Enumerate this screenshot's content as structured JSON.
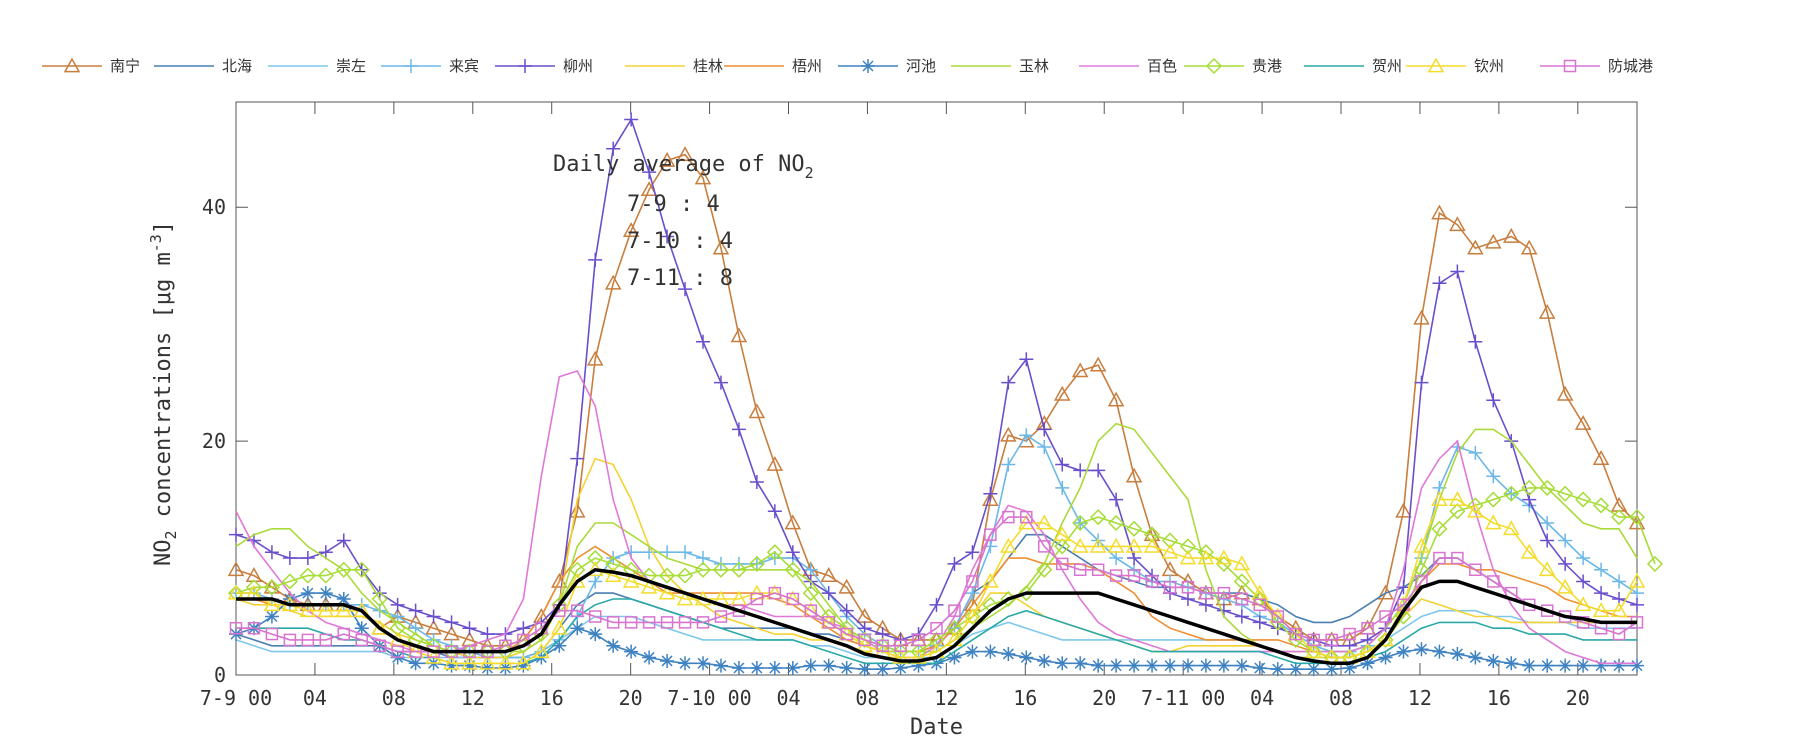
{
  "chart_data": {
    "type": "line",
    "xlabel": "Date",
    "ylabel_main": "NO",
    "ylabel_sub": "2",
    "ylabel_rest": " concentrations [",
    "ylabel_unit": "μg m",
    "ylabel_exp": "-3",
    "ylabel_end": "]",
    "ylim": [
      0,
      49
    ],
    "xlim": [
      0,
      71
    ],
    "yticks": [
      0,
      20,
      40
    ],
    "xticks": [
      {
        "x": 0,
        "label": "7-9 00"
      },
      {
        "x": 4,
        "label": "04"
      },
      {
        "x": 8,
        "label": "08"
      },
      {
        "x": 12,
        "label": "12"
      },
      {
        "x": 16,
        "label": "16"
      },
      {
        "x": 20,
        "label": "20"
      },
      {
        "x": 24,
        "label": "7-10 00"
      },
      {
        "x": 28,
        "label": "04"
      },
      {
        "x": 32,
        "label": "08"
      },
      {
        "x": 36,
        "label": "12"
      },
      {
        "x": 40,
        "label": "16"
      },
      {
        "x": 44,
        "label": "20"
      },
      {
        "x": 48,
        "label": "7-11 00"
      },
      {
        "x": 52,
        "label": "04"
      },
      {
        "x": 56,
        "label": "08"
      },
      {
        "x": 60,
        "label": "12"
      },
      {
        "x": 64,
        "label": "16"
      },
      {
        "x": 68,
        "label": "20"
      }
    ],
    "annotation": {
      "title_main": "Daily average of NO",
      "title_sub": "2",
      "lines": [
        "7-9 : 4",
        "7-10 : 4",
        "7-11 : 8"
      ]
    },
    "mean_color": "#000000",
    "series": [
      {
        "name": "南宁",
        "color": "#c87e3e",
        "marker": "triangle",
        "values": [
          9,
          8.5,
          7.5,
          6.5,
          6,
          6,
          6,
          5.5,
          4,
          5,
          4.5,
          4,
          3.5,
          3,
          2.5,
          2.5,
          3,
          5,
          8,
          14,
          27,
          33.5,
          38,
          41.5,
          44,
          44.5,
          42.5,
          36.5,
          29,
          22.5,
          18,
          13,
          9,
          8.5,
          7.5,
          5,
          4,
          3,
          3,
          3,
          4,
          6,
          15,
          20.5,
          20,
          21.5,
          24,
          26,
          26.5,
          23.5,
          17,
          12,
          9,
          8,
          7,
          6.5,
          7,
          6.5,
          5,
          4,
          3,
          3,
          3,
          4,
          7,
          14,
          30.5,
          39.5,
          38.5,
          36.5,
          37,
          37.5,
          36.5,
          31,
          24,
          21.5,
          18.5,
          14.5,
          13
        ]
      },
      {
        "name": "北海",
        "color": "#4a7fb0",
        "marker": "none",
        "values": [
          3.5,
          3,
          2.5,
          2.5,
          2.5,
          2.5,
          2.5,
          2.5,
          2.5,
          2,
          2,
          2,
          1.5,
          1.5,
          1.5,
          1.5,
          1.5,
          2,
          4,
          6,
          7,
          7,
          6.5,
          6,
          5.5,
          5,
          4.5,
          4,
          4,
          4,
          4,
          4,
          3.5,
          3.5,
          3,
          2.5,
          2,
          2,
          2,
          2.5,
          4,
          7,
          8,
          10,
          12,
          12,
          11,
          10,
          9,
          8.5,
          8,
          7.5,
          7.5,
          7.5,
          7,
          7,
          7,
          6.5,
          6,
          5,
          4.5,
          4.5,
          5,
          6,
          7,
          7.5,
          8.5,
          10,
          10,
          9,
          8,
          7,
          6,
          5.5,
          5,
          4.5,
          4.5,
          4.5,
          4.5
        ]
      },
      {
        "name": "崇左",
        "color": "#7fc8ea",
        "marker": "none",
        "values": [
          3,
          2.5,
          2,
          2,
          2,
          2,
          2,
          2,
          2,
          1.5,
          1.5,
          1.5,
          1.5,
          1.5,
          1.5,
          1.5,
          1.5,
          2,
          3,
          4,
          5,
          5,
          5,
          4.5,
          4,
          3.5,
          3,
          3,
          3,
          3,
          3,
          3,
          2.5,
          2.5,
          2,
          1.5,
          1.5,
          1.5,
          1.5,
          1.5,
          2.5,
          3.5,
          4,
          4.5,
          4,
          3.5,
          3,
          3,
          3,
          3,
          3,
          3,
          3,
          3,
          3,
          3,
          3,
          2.5,
          2,
          1.5,
          1.5,
          1.5,
          1.5,
          2,
          3,
          4,
          5,
          5.5,
          5.5,
          5.5,
          5,
          5,
          4.5,
          4.5,
          4.5,
          4,
          4,
          4,
          4
        ]
      },
      {
        "name": "来宾",
        "color": "#6cb8e8",
        "marker": "plus",
        "values": [
          7,
          7,
          6.5,
          6,
          6,
          6,
          6,
          6,
          5.5,
          5,
          4,
          3,
          2.5,
          2,
          1.5,
          1.5,
          1.5,
          2,
          3,
          5,
          8,
          10,
          10.5,
          10.5,
          10.5,
          10.5,
          10,
          9.5,
          9.5,
          9.5,
          10,
          10,
          9,
          7,
          5,
          3.5,
          2.5,
          2,
          2,
          2.5,
          4,
          7,
          11,
          18,
          20.5,
          19.5,
          16,
          13,
          11.5,
          10,
          9,
          8,
          8,
          7.5,
          7,
          6.5,
          6,
          5,
          4.5,
          3.5,
          2.5,
          2,
          2,
          2.5,
          4,
          6,
          10,
          16,
          19.5,
          19,
          17,
          15.5,
          14.5,
          13,
          11.5,
          10,
          9,
          8,
          7
        ]
      },
      {
        "name": "柳州",
        "color": "#6a4fcc",
        "marker": "plus",
        "values": [
          12,
          11.5,
          10.5,
          10,
          10,
          10.5,
          11.5,
          9,
          7,
          6,
          5.5,
          5,
          4.5,
          4,
          3.5,
          3.5,
          4,
          4.5,
          6,
          18.5,
          35.5,
          45,
          47.5,
          43,
          37.5,
          33,
          28.5,
          25,
          21,
          16.5,
          14,
          10.5,
          8,
          7,
          5.5,
          4,
          3.5,
          3,
          3.5,
          6,
          9.5,
          10.5,
          15.5,
          25,
          27,
          21,
          18,
          17.5,
          17.5,
          15,
          10,
          8.5,
          7,
          6.5,
          6,
          5.5,
          5,
          4.5,
          4,
          3.5,
          3,
          2.5,
          2.5,
          3,
          4,
          7.5,
          25,
          33.5,
          34.5,
          28.5,
          23.5,
          20,
          15,
          11.5,
          9.5,
          8,
          7,
          6.5,
          6
        ]
      },
      {
        "name": "桂林",
        "color": "#f3d233",
        "marker": "none",
        "values": [
          6.5,
          6,
          6,
          5.5,
          5,
          5,
          5,
          5,
          4.5,
          3.5,
          3,
          2.5,
          2,
          1.5,
          1.5,
          1.5,
          2,
          3,
          6,
          15,
          18.5,
          18,
          15,
          11,
          8.5,
          7,
          6,
          5,
          4.5,
          4,
          3.5,
          3.5,
          3,
          3,
          2.5,
          2,
          1.5,
          1.5,
          1.5,
          2,
          3,
          5,
          7,
          7,
          6,
          5,
          4.5,
          4,
          3.5,
          3,
          2.5,
          2,
          2,
          2.5,
          2.5,
          2.5,
          2.5,
          2.5,
          2,
          1.5,
          1.5,
          1.5,
          1.5,
          2,
          3,
          5,
          6.5,
          6,
          5.5,
          5,
          5,
          4.5,
          4.5,
          4.5,
          4.5,
          4.5,
          4.5,
          4.5,
          4.5
        ]
      },
      {
        "name": "梧州",
        "color": "#ee8f32",
        "marker": "none",
        "values": [
          6.5,
          6.5,
          6,
          6,
          6,
          6,
          6,
          5.5,
          4,
          3,
          2.5,
          2,
          2,
          2,
          2,
          2,
          3,
          5,
          8,
          10,
          11,
          10,
          9,
          8,
          7,
          7,
          7,
          7,
          7,
          7,
          6.5,
          6,
          5,
          4,
          3,
          2.5,
          2,
          2,
          2,
          2.5,
          4,
          6,
          8,
          10,
          10,
          9.5,
          9.5,
          9.5,
          9,
          8,
          7,
          5,
          4,
          3.5,
          3,
          3,
          3,
          3,
          3,
          2.5,
          2,
          1.5,
          1.5,
          2,
          3,
          5,
          8,
          9.5,
          9.5,
          9,
          9,
          8.5,
          8,
          7.5,
          6.5,
          6,
          5.5,
          5,
          5
        ]
      },
      {
        "name": "河池",
        "color": "#3e82c2",
        "marker": "star",
        "values": [
          3.5,
          4,
          5,
          6.5,
          7,
          7,
          6.5,
          4,
          2.5,
          1.5,
          1,
          1,
          0.8,
          0.8,
          0.6,
          0.6,
          0.8,
          1.5,
          2.5,
          4,
          3.5,
          2.5,
          2,
          1.5,
          1.2,
          1,
          1,
          0.8,
          0.6,
          0.6,
          0.6,
          0.6,
          0.8,
          0.8,
          0.6,
          0.5,
          0.5,
          0.6,
          0.8,
          1,
          1.5,
          2,
          2,
          1.8,
          1.5,
          1.2,
          1,
          1,
          0.8,
          0.8,
          0.8,
          0.8,
          0.8,
          0.8,
          0.8,
          0.8,
          0.8,
          0.6,
          0.5,
          0.5,
          0.5,
          0.5,
          0.6,
          1,
          1.5,
          2,
          2.2,
          2,
          1.8,
          1.5,
          1.2,
          1,
          0.8,
          0.8,
          0.8,
          0.8,
          0.8,
          0.8,
          0.8
        ]
      },
      {
        "name": "玉林",
        "color": "#aada3a",
        "marker": "none",
        "values": [
          11,
          12,
          12.5,
          12.5,
          11,
          10,
          9,
          7,
          5.5,
          4.5,
          3.5,
          2.5,
          2,
          2,
          2,
          2,
          2,
          3,
          6,
          11,
          13,
          13,
          12,
          11,
          10,
          9.5,
          9,
          9,
          9,
          9,
          9,
          9,
          8,
          6,
          4,
          2.5,
          2,
          2,
          2,
          2,
          3,
          4,
          5,
          6,
          7.5,
          9.5,
          13,
          16,
          20,
          21.5,
          21,
          19,
          17,
          15,
          9,
          5,
          3.5,
          2.5,
          2,
          2,
          2,
          2,
          2,
          2.5,
          4,
          6,
          10,
          15,
          19,
          21,
          21,
          20,
          18,
          16,
          14.5,
          13,
          12.5,
          12.5,
          10
        ]
      },
      {
        "name": "百色",
        "color": "#e078d8",
        "marker": "none",
        "values": [
          14,
          11,
          9,
          7,
          5.5,
          4.5,
          4,
          3.5,
          3,
          2.5,
          2,
          2,
          2,
          2.5,
          3,
          3.5,
          6.5,
          17,
          25.5,
          26,
          23,
          15,
          10,
          8,
          7.5,
          7,
          6.5,
          6,
          6,
          5.5,
          5,
          5,
          5,
          4.5,
          4,
          3,
          2,
          1.5,
          1.5,
          2.5,
          5,
          9,
          12,
          14.5,
          14,
          12,
          9,
          6.5,
          4.5,
          3.5,
          3,
          2.5,
          2,
          2,
          2,
          2,
          2,
          2,
          2,
          2,
          2,
          2,
          2,
          2.5,
          4,
          9,
          16,
          18.5,
          20,
          14,
          9,
          6,
          4,
          3,
          2,
          1.5,
          1,
          1,
          1
        ]
      },
      {
        "name": "贵港",
        "color": "#a6dd36",
        "marker": "diamond",
        "values": [
          7,
          7.5,
          7.5,
          8,
          8.5,
          8.5,
          9,
          9,
          6.5,
          4,
          3,
          2.5,
          2,
          2,
          2,
          2,
          2.5,
          3.5,
          6,
          9,
          10,
          9.5,
          9,
          8.5,
          8.5,
          8.5,
          9,
          9,
          9,
          9.5,
          10.5,
          9,
          7,
          5,
          4,
          3,
          2.5,
          2,
          2,
          3,
          4,
          5,
          6,
          6.5,
          7,
          9,
          11,
          13,
          13.5,
          13,
          12.5,
          12,
          11.5,
          11,
          10.5,
          9.5,
          8,
          6.5,
          4.5,
          3,
          2,
          1.5,
          1.5,
          2,
          3,
          5,
          9,
          12.5,
          14,
          14.5,
          15,
          15.5,
          16,
          16,
          15.5,
          15,
          14.5,
          13.5,
          13.5,
          9.5
        ]
      },
      {
        "name": "贺州",
        "color": "#2aa8a8",
        "marker": "none",
        "values": [
          4,
          4,
          4,
          4,
          4,
          3.5,
          3,
          3,
          2.5,
          2,
          1.5,
          1.5,
          1,
          1,
          1,
          1,
          1,
          1.5,
          3,
          5,
          6,
          6.5,
          6.5,
          6,
          5.5,
          5,
          4.5,
          4,
          3.5,
          3,
          3,
          3,
          2.5,
          2,
          1.5,
          1,
          1,
          1,
          1,
          1,
          2,
          3,
          4,
          5,
          5.5,
          5,
          4.5,
          4,
          3.5,
          3,
          2.5,
          2,
          2,
          2,
          2,
          2,
          2,
          2,
          1.5,
          1,
          1,
          1,
          1,
          1.5,
          2,
          3,
          4,
          4.5,
          4.5,
          4.5,
          4,
          4,
          3.5,
          3.5,
          3.5,
          3,
          3,
          3,
          3
        ]
      },
      {
        "name": "钦州",
        "color": "#f4dc2c",
        "marker": "triangle",
        "values": [
          7,
          7,
          6,
          6,
          5.5,
          5.5,
          5.5,
          5.5,
          4,
          3,
          2,
          1.5,
          1,
          1,
          1,
          1,
          1,
          2,
          4,
          8,
          9,
          8.5,
          8,
          7.5,
          7,
          6.5,
          6.5,
          6.5,
          6.5,
          7,
          7,
          6.5,
          5.5,
          4.5,
          3.5,
          2.5,
          2,
          1.5,
          1.5,
          2,
          3,
          5,
          8,
          11,
          13,
          13,
          12,
          11,
          11,
          11,
          11,
          11,
          10.5,
          10,
          10,
          10,
          9.5,
          7,
          5,
          3.5,
          2,
          1.5,
          1.5,
          2,
          3,
          6,
          11,
          15,
          15,
          14,
          13,
          12.5,
          10.5,
          9,
          7.5,
          6,
          5.5,
          5.5,
          8
        ]
      },
      {
        "name": "防城港",
        "color": "#d873d0",
        "marker": "square",
        "values": [
          4,
          4,
          3.5,
          3,
          3,
          3,
          3.5,
          3,
          2.5,
          2,
          2,
          2,
          2,
          2,
          2,
          2.5,
          3,
          4,
          5.5,
          5.5,
          5,
          4.5,
          4.5,
          4.5,
          4.5,
          4.5,
          4.5,
          5,
          5.5,
          6.5,
          7,
          6.5,
          5.5,
          4.5,
          3.5,
          3,
          2.5,
          2.5,
          3,
          4,
          5.5,
          8,
          12,
          13.5,
          13.5,
          11,
          9.5,
          9,
          9,
          8.5,
          8.5,
          8,
          7.5,
          7.5,
          7,
          7,
          6.5,
          6,
          5,
          3.5,
          3,
          3,
          3.5,
          4,
          5,
          6,
          8,
          10,
          10,
          9,
          8,
          7,
          6,
          5.5,
          5,
          4.5,
          4,
          3.5,
          4.5
        ]
      }
    ],
    "mean_values": [
      6.5,
      6.5,
      6.5,
      6,
      6,
      6,
      6,
      5.5,
      4,
      3,
      2.5,
      2,
      2,
      2,
      2,
      2,
      2.5,
      3.5,
      6,
      8,
      9,
      8.8,
      8.5,
      8,
      7.5,
      7,
      6.5,
      6,
      5.5,
      5,
      4.5,
      4,
      3.5,
      3,
      2.5,
      1.8,
      1.5,
      1.2,
      1.2,
      1.5,
      2.5,
      4,
      5.5,
      6.5,
      7,
      7,
      7,
      7,
      7,
      6.5,
      6,
      5.5,
      5,
      4.5,
      4,
      3.5,
      3,
      2.5,
      2,
      1.5,
      1.2,
      1,
      1,
      1.5,
      3,
      5.5,
      7.5,
      8,
      8,
      7.5,
      7,
      6.5,
      6,
      5.5,
      5,
      4.8,
      4.5,
      4.5,
      4.5
    ]
  }
}
